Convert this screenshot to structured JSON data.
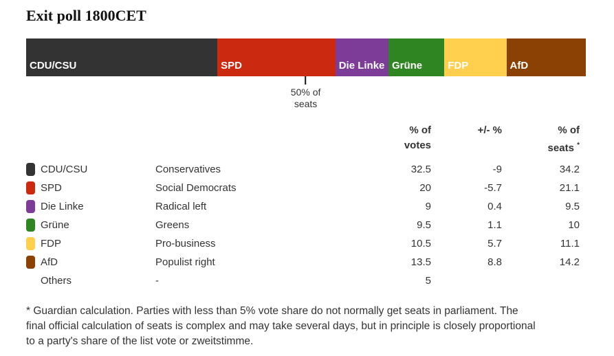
{
  "title": "Exit poll 1800CET",
  "chart_data": {
    "type": "bar",
    "variant": "horizontal-stacked-seats-bar",
    "title": "Exit poll 1800CET",
    "bar_metric": "% of seats",
    "axis_range": [
      0,
      100
    ],
    "marker": {
      "value": 50,
      "line1": "50% of",
      "line2": "seats"
    },
    "parties": [
      {
        "name": "CDU/CSU",
        "description": "Conservatives",
        "pct_votes": 32.5,
        "change_pct": -9,
        "pct_seats": 34.2,
        "color": "#333333",
        "in_bar": true
      },
      {
        "name": "SPD",
        "description": "Social Democrats",
        "pct_votes": 20,
        "change_pct": -5.7,
        "pct_seats": 21.1,
        "color": "#cb2a11",
        "in_bar": true
      },
      {
        "name": "Die Linke",
        "description": "Radical left",
        "pct_votes": 9,
        "change_pct": 0.4,
        "pct_seats": 9.5,
        "color": "#7d3c98",
        "in_bar": true
      },
      {
        "name": "Grüne",
        "description": "Greens",
        "pct_votes": 9.5,
        "change_pct": 1.1,
        "pct_seats": 10,
        "color": "#2e8522",
        "in_bar": true
      },
      {
        "name": "FDP",
        "description": "Pro-business",
        "pct_votes": 10.5,
        "change_pct": 5.7,
        "pct_seats": 11.1,
        "color": "#ffcf4d",
        "in_bar": true
      },
      {
        "name": "AfD",
        "description": "Populist right",
        "pct_votes": 13.5,
        "change_pct": 8.8,
        "pct_seats": 14.2,
        "color": "#8b4004",
        "in_bar": true
      },
      {
        "name": "Others",
        "description": "-",
        "pct_votes": 5,
        "change_pct": null,
        "pct_seats": null,
        "color": null,
        "in_bar": false
      }
    ]
  },
  "table_header": {
    "votes_l1": "% of",
    "votes_l2": "votes",
    "change": "+/- %",
    "seats_l1": "% of",
    "seats_l2": "seats",
    "note_symbol": "*"
  },
  "footnote": "* Guardian calculation. Parties with less than 5% vote share do not normally get seats in parliament. The final official calculation of seats is complex and may take several days, but in principle is closely proportional to a party's share of the list vote or zweitstimme."
}
